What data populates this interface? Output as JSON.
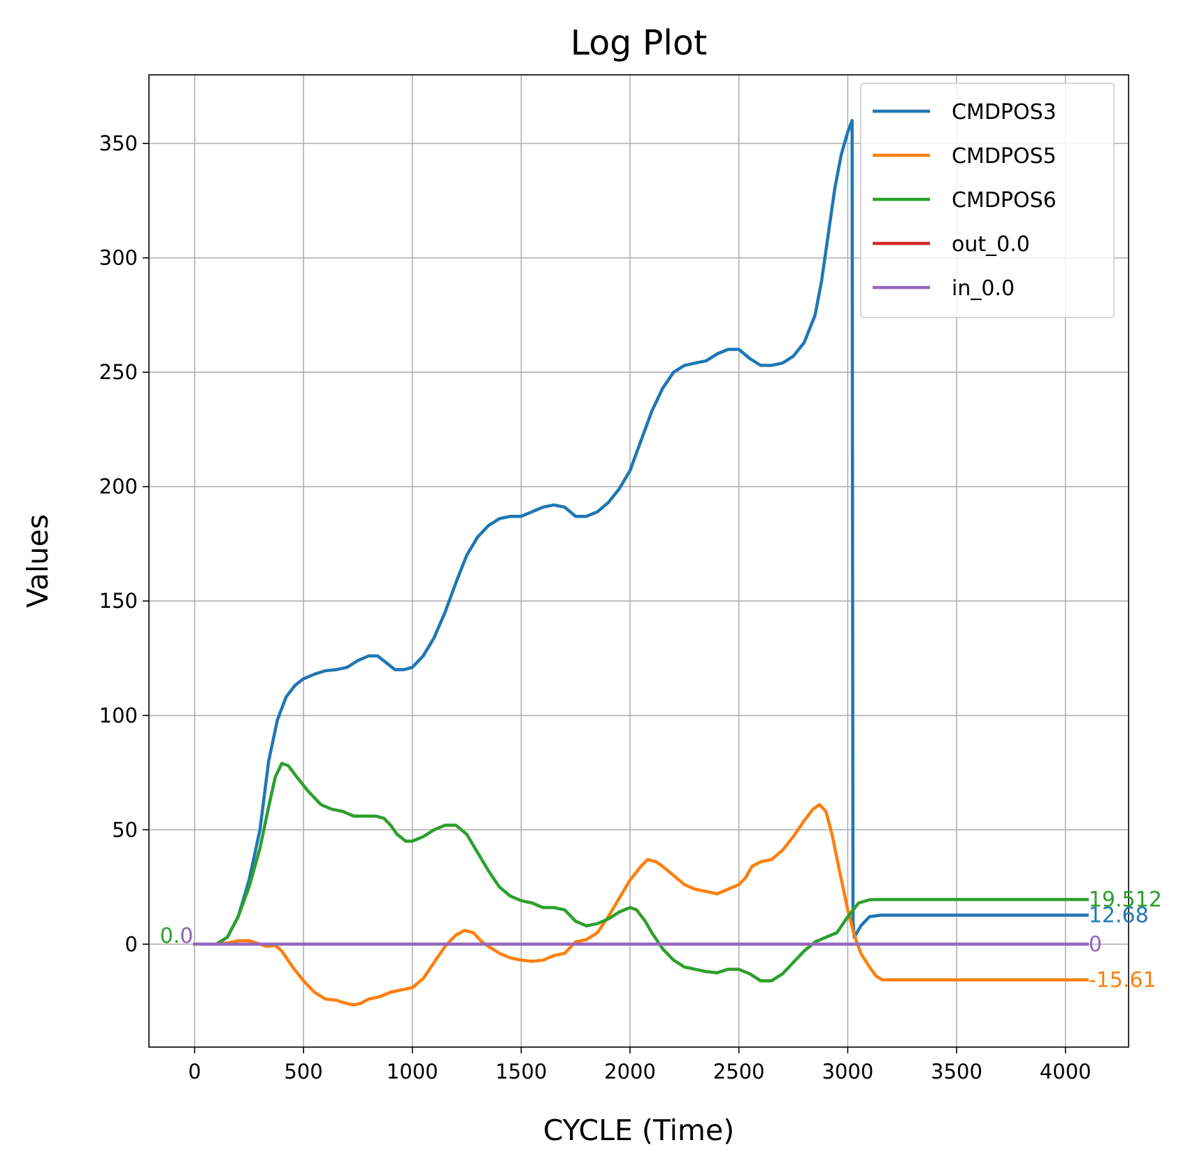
{
  "chart_data": {
    "type": "line",
    "title": "Log Plot",
    "xlabel": "CYCLE (Time)",
    "ylabel": "Values",
    "xlim": [
      -210,
      4290
    ],
    "ylim": [
      -45,
      380
    ],
    "xticks": [
      0,
      500,
      1000,
      1500,
      2000,
      2500,
      3000,
      3500,
      4000
    ],
    "yticks": [
      0,
      50,
      100,
      150,
      200,
      250,
      300,
      350
    ],
    "grid": true,
    "legend_position": "top-right",
    "series": [
      {
        "name": "CMDPOS3",
        "color": "#1f77b4",
        "end_label": "12.68",
        "start_label": "",
        "points": [
          [
            0,
            0
          ],
          [
            100,
            0
          ],
          [
            150,
            3
          ],
          [
            200,
            12
          ],
          [
            250,
            28
          ],
          [
            300,
            50
          ],
          [
            340,
            80
          ],
          [
            380,
            98
          ],
          [
            420,
            108
          ],
          [
            460,
            113
          ],
          [
            500,
            116
          ],
          [
            550,
            118
          ],
          [
            600,
            119.5
          ],
          [
            650,
            120
          ],
          [
            700,
            121
          ],
          [
            750,
            124
          ],
          [
            800,
            126
          ],
          [
            840,
            126
          ],
          [
            880,
            123
          ],
          [
            920,
            120
          ],
          [
            960,
            120
          ],
          [
            1000,
            121
          ],
          [
            1050,
            126
          ],
          [
            1100,
            134
          ],
          [
            1150,
            145
          ],
          [
            1200,
            158
          ],
          [
            1250,
            170
          ],
          [
            1300,
            178
          ],
          [
            1350,
            183
          ],
          [
            1400,
            186
          ],
          [
            1450,
            187
          ],
          [
            1500,
            187
          ],
          [
            1550,
            189
          ],
          [
            1600,
            191
          ],
          [
            1650,
            192
          ],
          [
            1700,
            191
          ],
          [
            1750,
            187
          ],
          [
            1800,
            187
          ],
          [
            1850,
            189
          ],
          [
            1900,
            193
          ],
          [
            1950,
            199
          ],
          [
            2000,
            207
          ],
          [
            2050,
            220
          ],
          [
            2100,
            233
          ],
          [
            2150,
            243
          ],
          [
            2200,
            250
          ],
          [
            2250,
            253
          ],
          [
            2300,
            254
          ],
          [
            2350,
            255
          ],
          [
            2400,
            258
          ],
          [
            2450,
            260
          ],
          [
            2500,
            260
          ],
          [
            2550,
            256
          ],
          [
            2600,
            253
          ],
          [
            2650,
            253
          ],
          [
            2700,
            254
          ],
          [
            2750,
            257
          ],
          [
            2800,
            263
          ],
          [
            2850,
            275
          ],
          [
            2880,
            290
          ],
          [
            2910,
            310
          ],
          [
            2940,
            330
          ],
          [
            2970,
            345
          ],
          [
            3000,
            355
          ],
          [
            3020,
            360
          ],
          [
            3024,
            10
          ],
          [
            3030,
            3
          ],
          [
            3060,
            8
          ],
          [
            3100,
            12
          ],
          [
            3150,
            12.68
          ],
          [
            4100,
            12.68
          ]
        ]
      },
      {
        "name": "CMDPOS5",
        "color": "#ff7f0e",
        "end_label": "-15.61",
        "start_label": "",
        "points": [
          [
            0,
            0
          ],
          [
            100,
            0
          ],
          [
            150,
            0.5
          ],
          [
            200,
            1.5
          ],
          [
            250,
            1.5
          ],
          [
            300,
            0
          ],
          [
            330,
            -1
          ],
          [
            370,
            -0.5
          ],
          [
            400,
            -3
          ],
          [
            450,
            -10
          ],
          [
            500,
            -16
          ],
          [
            550,
            -21
          ],
          [
            600,
            -24
          ],
          [
            650,
            -24.5
          ],
          [
            700,
            -26
          ],
          [
            730,
            -26.5
          ],
          [
            760,
            -26
          ],
          [
            800,
            -24
          ],
          [
            850,
            -23
          ],
          [
            900,
            -21
          ],
          [
            950,
            -20
          ],
          [
            1000,
            -19
          ],
          [
            1050,
            -15
          ],
          [
            1100,
            -8
          ],
          [
            1150,
            -1
          ],
          [
            1200,
            4
          ],
          [
            1240,
            6
          ],
          [
            1280,
            5
          ],
          [
            1320,
            1
          ],
          [
            1350,
            -1
          ],
          [
            1400,
            -4
          ],
          [
            1450,
            -6
          ],
          [
            1500,
            -7
          ],
          [
            1550,
            -7.5
          ],
          [
            1600,
            -7
          ],
          [
            1650,
            -5
          ],
          [
            1700,
            -4
          ],
          [
            1750,
            1
          ],
          [
            1800,
            2
          ],
          [
            1850,
            5
          ],
          [
            1900,
            12
          ],
          [
            1950,
            20
          ],
          [
            2000,
            28
          ],
          [
            2050,
            34
          ],
          [
            2080,
            37
          ],
          [
            2120,
            36
          ],
          [
            2150,
            34
          ],
          [
            2200,
            30
          ],
          [
            2250,
            26
          ],
          [
            2300,
            24
          ],
          [
            2350,
            23
          ],
          [
            2400,
            22
          ],
          [
            2450,
            24
          ],
          [
            2500,
            26
          ],
          [
            2530,
            29
          ],
          [
            2560,
            34
          ],
          [
            2600,
            36
          ],
          [
            2650,
            37
          ],
          [
            2700,
            41
          ],
          [
            2750,
            47
          ],
          [
            2800,
            54
          ],
          [
            2840,
            59
          ],
          [
            2870,
            61
          ],
          [
            2900,
            58
          ],
          [
            2930,
            47
          ],
          [
            2960,
            33
          ],
          [
            3000,
            15
          ],
          [
            3030,
            4
          ],
          [
            3060,
            -4
          ],
          [
            3100,
            -10
          ],
          [
            3130,
            -14
          ],
          [
            3160,
            -15.61
          ],
          [
            4100,
            -15.61
          ]
        ]
      },
      {
        "name": "CMDPOS6",
        "color": "#2ca02c",
        "end_label": "19.512",
        "start_label": "0.0",
        "points": [
          [
            0,
            0
          ],
          [
            100,
            0
          ],
          [
            150,
            3
          ],
          [
            200,
            12
          ],
          [
            250,
            25
          ],
          [
            300,
            42
          ],
          [
            340,
            60
          ],
          [
            370,
            73
          ],
          [
            400,
            79
          ],
          [
            430,
            78
          ],
          [
            470,
            73
          ],
          [
            520,
            67
          ],
          [
            580,
            61
          ],
          [
            630,
            59
          ],
          [
            680,
            58
          ],
          [
            730,
            56
          ],
          [
            780,
            56
          ],
          [
            830,
            56
          ],
          [
            870,
            55
          ],
          [
            900,
            52
          ],
          [
            930,
            48
          ],
          [
            970,
            45
          ],
          [
            1000,
            45
          ],
          [
            1050,
            47
          ],
          [
            1100,
            50
          ],
          [
            1150,
            52
          ],
          [
            1200,
            52
          ],
          [
            1250,
            48
          ],
          [
            1300,
            40
          ],
          [
            1350,
            32
          ],
          [
            1400,
            25
          ],
          [
            1450,
            21
          ],
          [
            1500,
            19
          ],
          [
            1550,
            18
          ],
          [
            1600,
            16
          ],
          [
            1650,
            16
          ],
          [
            1700,
            15
          ],
          [
            1750,
            10
          ],
          [
            1800,
            8
          ],
          [
            1850,
            9
          ],
          [
            1900,
            11
          ],
          [
            1950,
            14
          ],
          [
            2000,
            16
          ],
          [
            2030,
            15
          ],
          [
            2070,
            10
          ],
          [
            2100,
            5
          ],
          [
            2150,
            -2
          ],
          [
            2200,
            -7
          ],
          [
            2250,
            -10
          ],
          [
            2300,
            -11
          ],
          [
            2350,
            -12
          ],
          [
            2400,
            -12.5
          ],
          [
            2450,
            -11
          ],
          [
            2500,
            -11
          ],
          [
            2550,
            -13
          ],
          [
            2600,
            -16
          ],
          [
            2650,
            -16
          ],
          [
            2700,
            -13
          ],
          [
            2750,
            -8
          ],
          [
            2800,
            -3
          ],
          [
            2850,
            1
          ],
          [
            2900,
            3
          ],
          [
            2950,
            5
          ],
          [
            3000,
            12
          ],
          [
            3050,
            18
          ],
          [
            3100,
            19.4
          ],
          [
            3150,
            19.512
          ],
          [
            4100,
            19.512
          ]
        ]
      },
      {
        "name": "out_0.0",
        "color": "#d62728",
        "end_label": "",
        "start_label": "",
        "points": [
          [
            0,
            0
          ],
          [
            4100,
            0
          ]
        ]
      },
      {
        "name": "in_0.0",
        "color": "#9467bd",
        "end_label": "0",
        "start_label": "0",
        "points": [
          [
            0,
            0
          ],
          [
            4100,
            0
          ]
        ]
      }
    ]
  }
}
